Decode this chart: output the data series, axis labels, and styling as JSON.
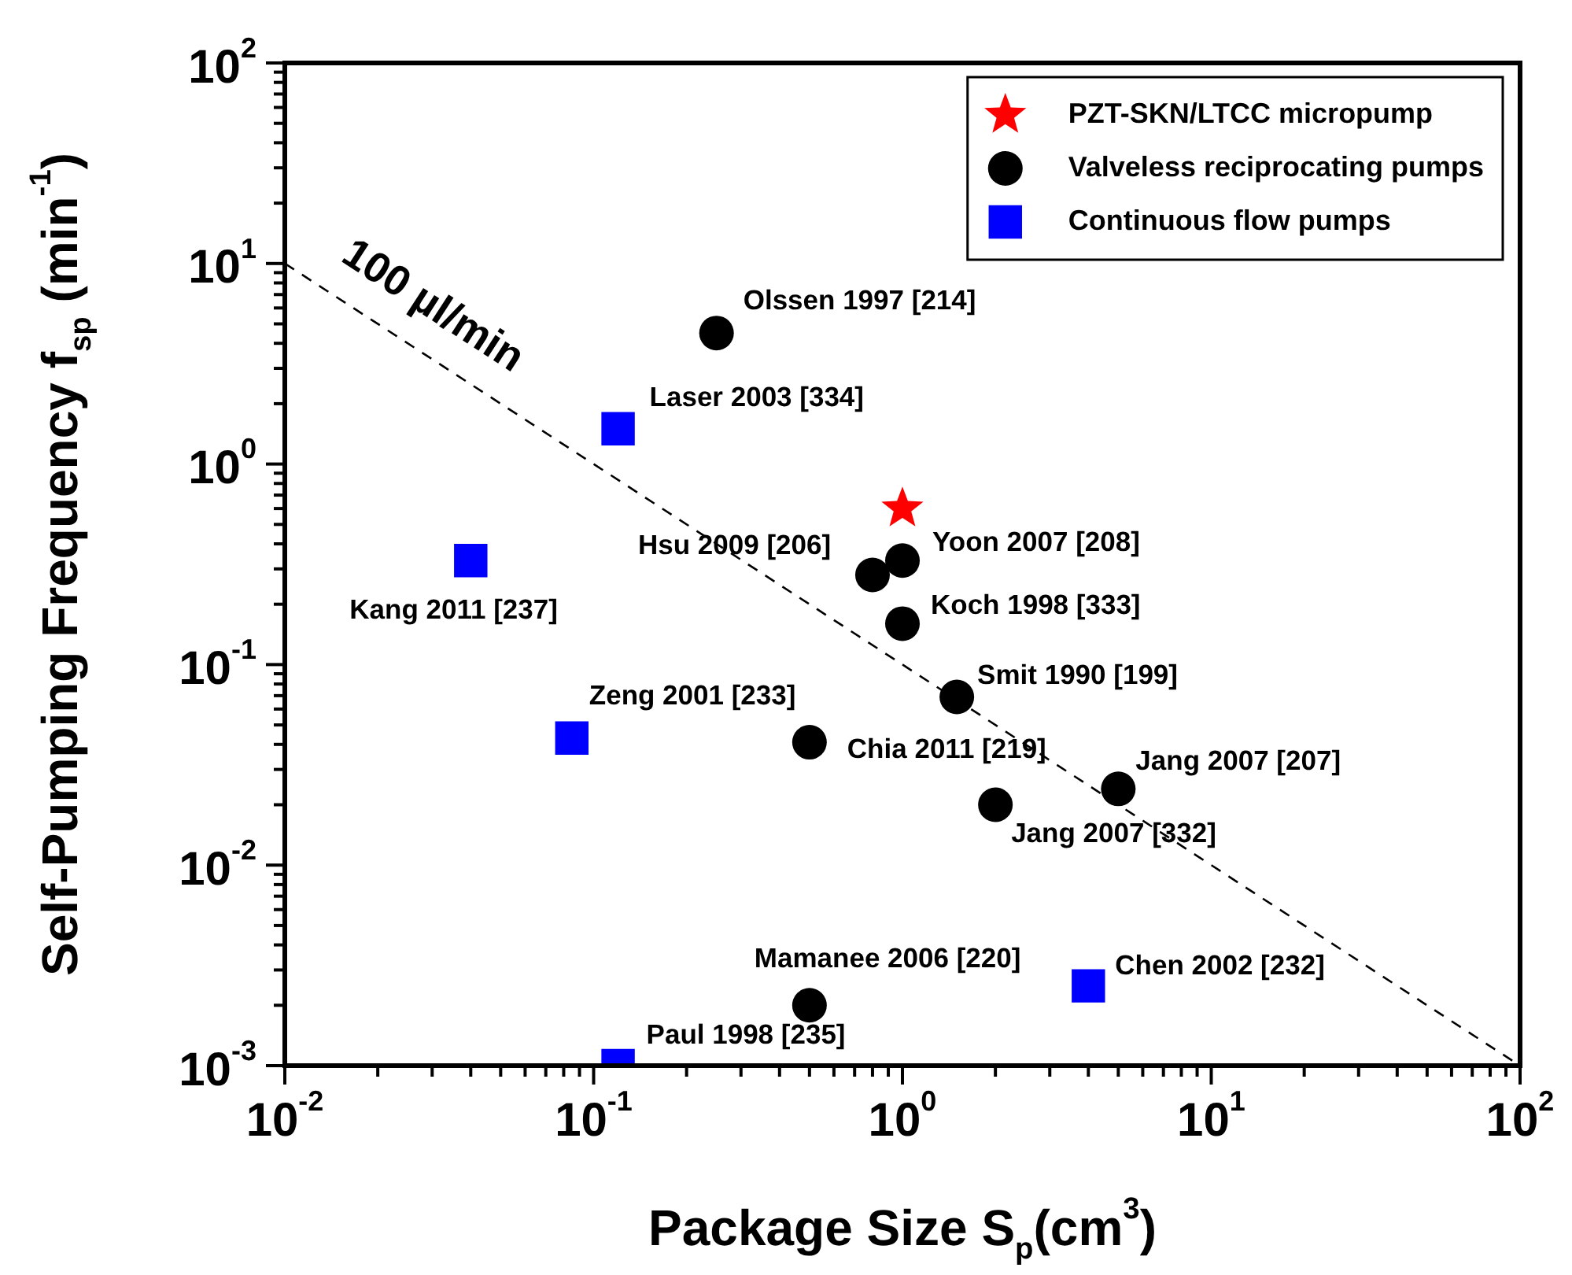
{
  "chart_data": {
    "type": "scatter",
    "xlabel": "Package Size S$_{p}$(cm$^{3}$)",
    "ylabel": "Self-Pumping Frequency f$_{sp}$ (min$^{-1}$)",
    "log": "xy",
    "xlim": [
      0.01,
      100
    ],
    "ylim": [
      0.001,
      100
    ],
    "xticks": [
      {
        "value": 0.01,
        "label": "10$^{-2}$"
      },
      {
        "value": 0.1,
        "label": "10$^{-1}$"
      },
      {
        "value": 1,
        "label": "10$^{0}$"
      },
      {
        "value": 10,
        "label": "10$^{1}$"
      },
      {
        "value": 100,
        "label": "10$^{2}$"
      }
    ],
    "yticks": [
      {
        "value": 0.001,
        "label": "10$^{-3}$"
      },
      {
        "value": 0.01,
        "label": "10$^{-2}$"
      },
      {
        "value": 0.1,
        "label": "10$^{-1}$"
      },
      {
        "value": 1,
        "label": "10$^{0}$"
      },
      {
        "value": 10,
        "label": "10$^{1}$"
      },
      {
        "value": 100,
        "label": "10$^{2}$"
      }
    ],
    "grid": false,
    "legend": "top right",
    "series": [
      {
        "name": "PZT-SKN/LTCC micropump",
        "marker": "star",
        "color": "#ff0000",
        "x": [
          1.0
        ],
        "values": [
          0.6
        ]
      },
      {
        "name": "Valveless reciprocating pumps",
        "marker": "circle",
        "color": "#000000",
        "x": [
          0.25,
          0.8,
          1.0,
          1.0,
          1.5,
          0.5,
          5,
          2,
          0.5
        ],
        "values": [
          4.5,
          0.28,
          0.33,
          0.16,
          0.069,
          0.041,
          0.024,
          0.02,
          0.002
        ]
      },
      {
        "name": "Continuous flow pumps",
        "marker": "square",
        "color": "#0000ff",
        "x": [
          0.12,
          0.04,
          0.085,
          4,
          0.12
        ],
        "values": [
          1.5,
          0.33,
          0.043,
          0.0025,
          0.001
        ]
      },
      {
        "name": "100 µl/min",
        "type": "line",
        "marker": "none",
        "line_style": "dashed",
        "color": "#000000",
        "x": [
          0.01,
          100
        ],
        "values": [
          10,
          0.001
        ]
      }
    ],
    "annotations": [
      {
        "text": "Olssen 1997 [214]",
        "x": 0.25,
        "y": 4.5
      },
      {
        "text": "Laser 2003 [334]",
        "x": 0.12,
        "y": 1.5
      },
      {
        "text": "Kang 2011 [237]",
        "x": 0.04,
        "y": 0.33
      },
      {
        "text": "Hsu 2009 [206]",
        "x": 0.8,
        "y": 0.28
      },
      {
        "text": "Yoon 2007 [208]",
        "x": 1.0,
        "y": 0.33
      },
      {
        "text": "Koch 1998 [333]",
        "x": 1.0,
        "y": 0.16
      },
      {
        "text": "Smit 1990 [199]",
        "x": 1.5,
        "y": 0.069
      },
      {
        "text": "Zeng 2001 [233]",
        "x": 0.085,
        "y": 0.043
      },
      {
        "text": "Chia 2011 [219]",
        "x": 0.5,
        "y": 0.041
      },
      {
        "text": "Jang 2007 [207]",
        "x": 5,
        "y": 0.024
      },
      {
        "text": "Jang 2007 [332]",
        "x": 2,
        "y": 0.02
      },
      {
        "text": "Mamanee 2006 [220]",
        "x": 0.5,
        "y": 0.002
      },
      {
        "text": "Chen 2002 [232]",
        "x": 4,
        "y": 0.0025
      },
      {
        "text": "Paul 1998 [235]",
        "x": 0.12,
        "y": 0.001
      }
    ]
  }
}
